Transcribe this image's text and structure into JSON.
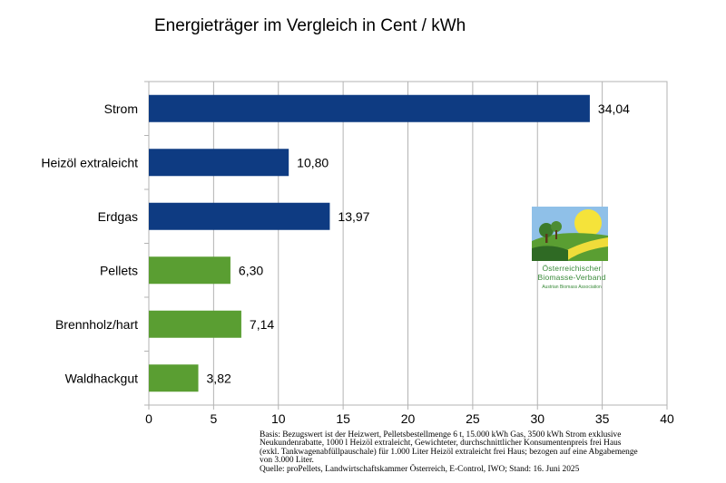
{
  "chart_data": {
    "type": "bar",
    "orientation": "horizontal",
    "title": "Energieträger im Vergleich in Cent / kWh",
    "categories": [
      "Strom",
      "Heizöl extraleicht",
      "Erdgas",
      "Pellets",
      "Brennholz/hart",
      "Waldhackgut"
    ],
    "values": [
      34.04,
      10.8,
      13.97,
      6.3,
      7.14,
      3.82
    ],
    "value_labels": [
      "34,04",
      "10,80",
      "13,97",
      "6,30",
      "7,14",
      "3,82"
    ],
    "bar_colors": [
      "#0e3b82",
      "#0e3b82",
      "#0e3b82",
      "#5a9e32",
      "#5a9e32",
      "#5a9e32"
    ],
    "xlim": [
      0,
      40
    ],
    "xticks": [
      0,
      5,
      10,
      15,
      20,
      25,
      30,
      35,
      40
    ],
    "xtick_labels": [
      "0",
      "5",
      "10",
      "15",
      "20",
      "25",
      "30",
      "35",
      "40"
    ],
    "grid": true,
    "xlabel": "",
    "ylabel": ""
  },
  "logo": {
    "line1": "Österreichischer",
    "line2": "Biomasse-Verband",
    "line3": "Austrian Biomass Association"
  },
  "footnote": {
    "lines": [
      "Basis: Bezugswert ist der Heizwert, Pelletsbestellmenge 6 t, 15.000 kWh Gas, 3500 kWh Strom exklusive",
      "Neukundenrabatte, 1000 l Heizöl extraleicht, Gewichteter, durchschnittlicher Konsumentenpreis frei Haus",
      "(exkl. Tankwagenabfüllpauschale) für 1.000 Liter Heizöl extraleicht frei Haus; bezogen auf eine Abgabemenge",
      "von 3.000 Liter.",
      "Quelle: proPellets, Landwirtschaftskammer Österreich, E-Control, IWO; Stand: 16. Juni 2025"
    ]
  }
}
